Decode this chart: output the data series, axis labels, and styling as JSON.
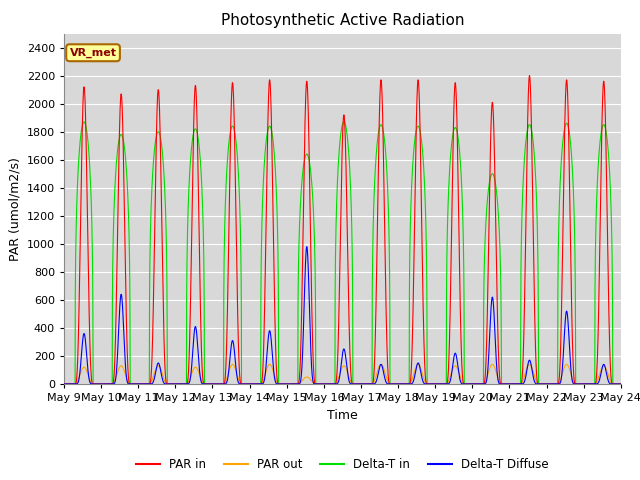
{
  "title": "Photosynthetic Active Radiation",
  "ylabel": "PAR (umol/m2/s)",
  "xlabel": "Time",
  "xlim_start": 0,
  "xlim_end": 15,
  "ylim": [
    0,
    2500
  ],
  "yticks": [
    0,
    200,
    400,
    600,
    800,
    1000,
    1200,
    1400,
    1600,
    1800,
    2000,
    2200,
    2400
  ],
  "xtick_labels": [
    "May 9",
    "May 10",
    "May 11",
    "May 12",
    "May 13",
    "May 14",
    "May 15",
    "May 16",
    "May 17",
    "May 18",
    "May 19",
    "May 20",
    "May 21",
    "May 22",
    "May 23",
    "May 24"
  ],
  "legend_items": [
    "PAR in",
    "PAR out",
    "Delta-T in",
    "Delta-T Diffuse"
  ],
  "par_in_color": "#ff0000",
  "par_out_color": "#ffa500",
  "delta_t_in_color": "#00dd00",
  "delta_t_diffuse_color": "#0000ff",
  "plot_bg_color": "#d8d8d8",
  "fig_bg_color": "#ffffff",
  "grid_color": "#ffffff",
  "annotation_text": "VR_met",
  "annotation_box_color": "#ffff99",
  "annotation_border_color": "#aa6600",
  "title_fontsize": 11,
  "axis_fontsize": 9,
  "tick_fontsize": 8,
  "par_in_peaks": [
    2120,
    2070,
    2100,
    2130,
    2150,
    2170,
    2160,
    1920,
    2170,
    2170,
    2150,
    2010,
    2200,
    2170,
    2160
  ],
  "par_out_peaks": [
    120,
    130,
    130,
    120,
    140,
    140,
    50,
    130,
    140,
    140,
    130,
    140,
    140,
    140,
    130
  ],
  "delta_t_peaks": [
    1870,
    1780,
    1800,
    1820,
    1840,
    1840,
    1640,
    1870,
    1850,
    1840,
    1830,
    1500,
    1850,
    1860,
    1850
  ],
  "delta_diffuse_peaks": [
    360,
    640,
    150,
    410,
    310,
    380,
    980,
    250,
    140,
    150,
    220,
    620,
    170,
    520,
    140
  ]
}
